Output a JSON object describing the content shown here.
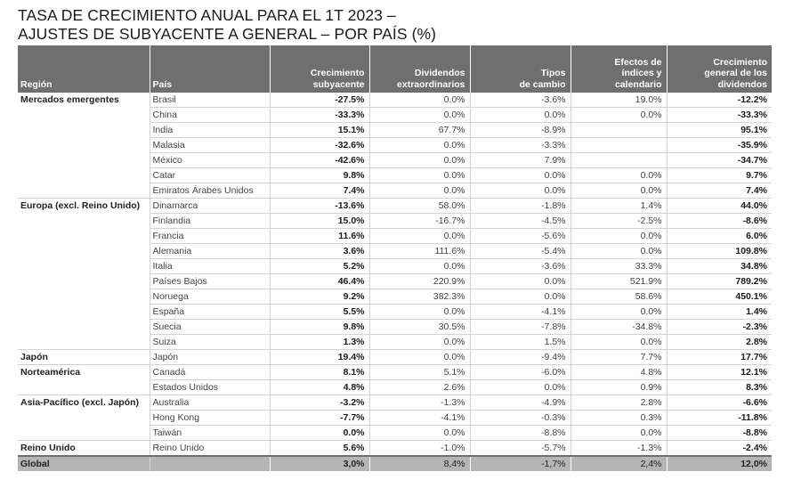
{
  "title": {
    "line1": "TASA DE CRECIMIENTO ANUAL PARA EL 1T 2023 –",
    "line2": "AJUSTES DE SUBYACENTE A GENERAL – POR PAÍS (%)"
  },
  "headers": {
    "region": "Región",
    "country": "País",
    "underlying": [
      "Crecimiento",
      "subyacente"
    ],
    "special": [
      "Dividendos",
      "extraordinarios"
    ],
    "fx": [
      "Tipos",
      "de cambio"
    ],
    "index": [
      "Efectos de",
      "índices y",
      "calendario"
    ],
    "headline": [
      "Crecimiento",
      "general de los",
      "dividendos"
    ]
  },
  "rows": [
    {
      "region": "Mercados emergentes",
      "country": "Brasil",
      "underlying": "-27.5%",
      "special": "0.0%",
      "fx": "-3.6%",
      "index": "19.0%",
      "headline": "-12.2%"
    },
    {
      "region": "",
      "country": "China",
      "underlying": "-33.3%",
      "special": "0.0%",
      "fx": "0.0%",
      "index": "0.0%",
      "headline": "-33.3%"
    },
    {
      "region": "",
      "country": "India",
      "underlying": "15.1%",
      "special": "67.7%",
      "fx": "-8.9%",
      "index": "",
      "headline": "95.1%"
    },
    {
      "region": "",
      "country": "Malasia",
      "underlying": "-32.6%",
      "special": "0.0%",
      "fx": "-3.3%",
      "index": "",
      "headline": "-35.9%"
    },
    {
      "region": "",
      "country": "México",
      "underlying": "-42.6%",
      "special": "0.0%",
      "fx": "7.9%",
      "index": "",
      "headline": "-34.7%"
    },
    {
      "region": "",
      "country": "Catar",
      "underlying": "9.8%",
      "special": "0.0%",
      "fx": "0.0%",
      "index": "0.0%",
      "headline": "9.7%"
    },
    {
      "region": "",
      "country": "Emiratos Árabes Unidos",
      "underlying": "7.4%",
      "special": "0.0%",
      "fx": "0.0%",
      "index": "0.0%",
      "headline": "7.4%",
      "end": true
    },
    {
      "region": "Europa (excl. Reino Unido)",
      "country": "Dinamarca",
      "underlying": "-13.6%",
      "special": "58.0%",
      "fx": "-1.8%",
      "index": "1.4%",
      "headline": "44.0%"
    },
    {
      "region": "",
      "country": "Finlandia",
      "underlying": "15.0%",
      "special": "-16.7%",
      "fx": "-4.5%",
      "index": "-2.5%",
      "headline": "-8.6%"
    },
    {
      "region": "",
      "country": "Francia",
      "underlying": "11.6%",
      "special": "0.0%",
      "fx": "-5.6%",
      "index": "0.0%",
      "headline": "6.0%"
    },
    {
      "region": "",
      "country": "Alemania",
      "underlying": "3.6%",
      "special": "111.6%",
      "fx": "-5.4%",
      "index": "0.0%",
      "headline": "109.8%"
    },
    {
      "region": "",
      "country": "Italia",
      "underlying": "5.2%",
      "special": "0.0%",
      "fx": "-3.6%",
      "index": "33.3%",
      "headline": "34.8%"
    },
    {
      "region": "",
      "country": "Países Bajos",
      "underlying": "46.4%",
      "special": "220.9%",
      "fx": "0.0%",
      "index": "521.9%",
      "headline": "789.2%"
    },
    {
      "region": "",
      "country": "Noruega",
      "underlying": "9.2%",
      "special": "382.3%",
      "fx": "0.0%",
      "index": "58.6%",
      "headline": "450.1%"
    },
    {
      "region": "",
      "country": "España",
      "underlying": "5.5%",
      "special": "0.0%",
      "fx": "-4.1%",
      "index": "0.0%",
      "headline": "1.4%"
    },
    {
      "region": "",
      "country": "Suecia",
      "underlying": "9.8%",
      "special": "30.5%",
      "fx": "-7.8%",
      "index": "-34.8%",
      "headline": "-2.3%"
    },
    {
      "region": "",
      "country": "Suiza",
      "underlying": "1.3%",
      "special": "0.0%",
      "fx": "1.5%",
      "index": "0.0%",
      "headline": "2.8%",
      "end": true
    },
    {
      "region": "Japón",
      "country": "Japón",
      "underlying": "19.4%",
      "special": "0.0%",
      "fx": "-9.4%",
      "index": "7.7%",
      "headline": "17.7%",
      "end": true
    },
    {
      "region": "Norteamérica",
      "country": "Canadá",
      "underlying": "8.1%",
      "special": "5.1%",
      "fx": "-6.0%",
      "index": "4.8%",
      "headline": "12.1%"
    },
    {
      "region": "",
      "country": "Estados Unidos",
      "underlying": "4.8%",
      "special": "2.6%",
      "fx": "0.0%",
      "index": "0.9%",
      "headline": "8.3%",
      "end": true
    },
    {
      "region": "Asia-Pacífico (excl. Japón)",
      "country": "Australia",
      "underlying": "-3.2%",
      "special": "-1.3%",
      "fx": "-4.9%",
      "index": "2.8%",
      "headline": "-6.6%"
    },
    {
      "region": "",
      "country": "Hong Kong",
      "underlying": "-7.7%",
      "special": "-4.1%",
      "fx": "-0.3%",
      "index": "0.3%",
      "headline": "-11.8%"
    },
    {
      "region": "",
      "country": "Taiwán",
      "underlying": "0.0%",
      "special": "0.0%",
      "fx": "-8.8%",
      "index": "0.0%",
      "headline": "-8.8%",
      "end": true
    },
    {
      "region": "Reino Unido",
      "country": "Reino Unido",
      "underlying": "5.6%",
      "special": "-1.0%",
      "fx": "-5.7%",
      "index": "-1.3%",
      "headline": "-2.4%",
      "end": true
    }
  ],
  "global": {
    "label": "Global",
    "underlying": "3,0%",
    "special": "8,4%",
    "fx": "-1,7%",
    "index": "2,4%",
    "headline": "12,0%"
  }
}
